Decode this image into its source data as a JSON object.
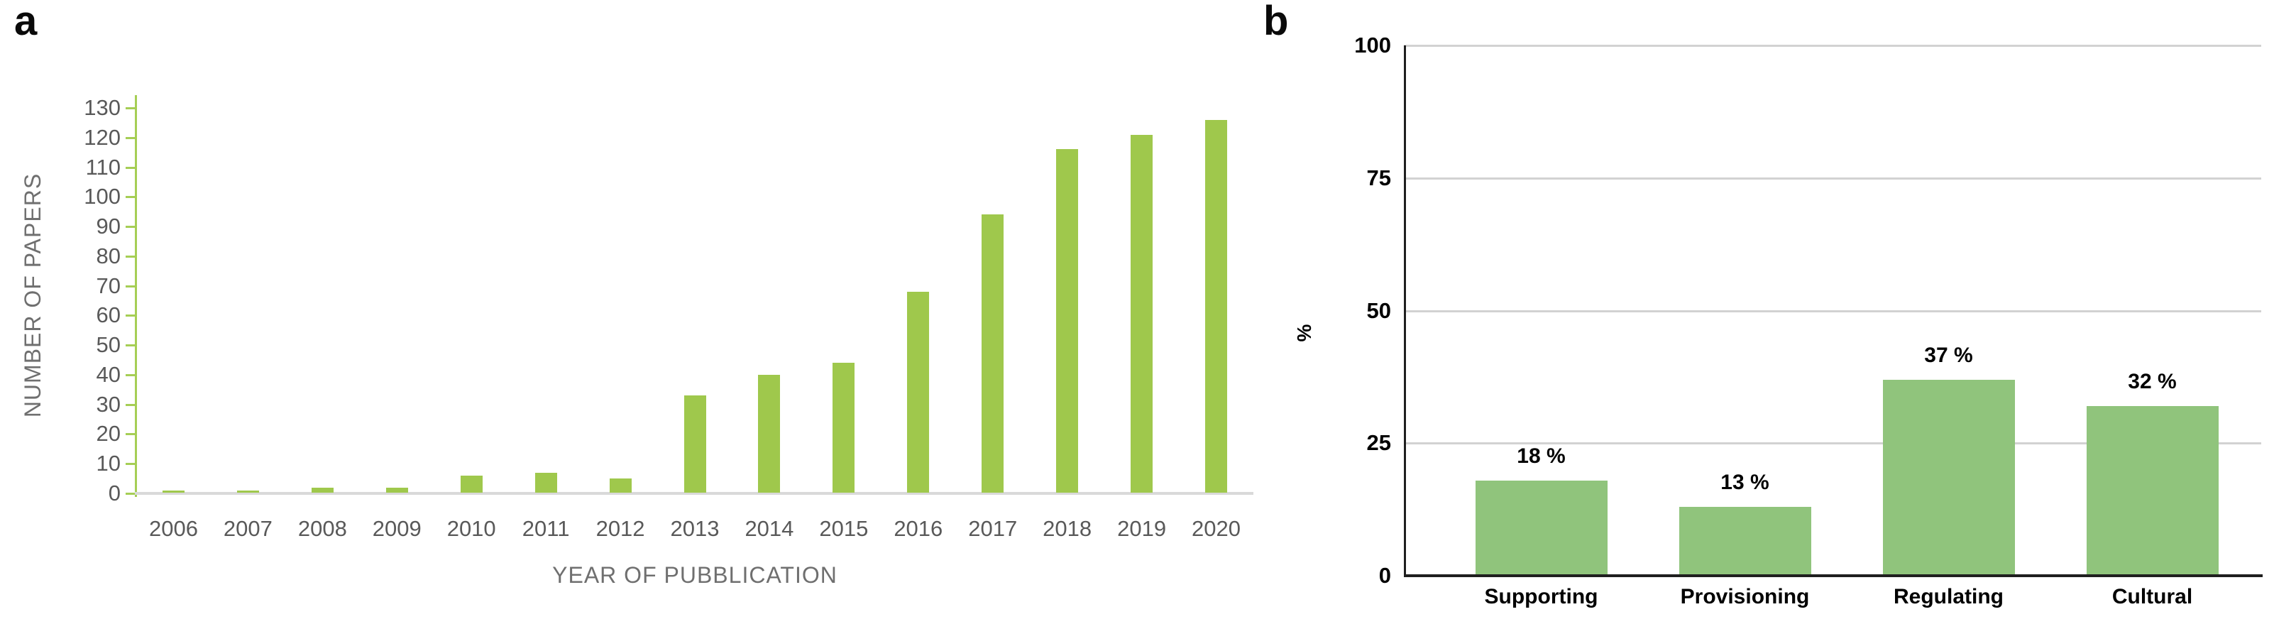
{
  "figure_title": "",
  "chart_data": [
    {
      "type": "bar",
      "panel_label": "a",
      "xlabel": "YEAR OF PUBBLICATION",
      "ylabel": "NUMBER OF PAPERS",
      "categories": [
        "2006",
        "2007",
        "2008",
        "2009",
        "2010",
        "2011",
        "2012",
        "2013",
        "2014",
        "2015",
        "2016",
        "2017",
        "2018",
        "2019",
        "2020"
      ],
      "values": [
        1,
        1,
        2,
        2,
        6,
        7,
        5,
        33,
        40,
        44,
        68,
        94,
        116,
        121,
        126
      ],
      "ylim": [
        0,
        130
      ],
      "y_ticks": [
        0,
        10,
        20,
        30,
        40,
        50,
        60,
        70,
        80,
        90,
        100,
        110,
        120,
        130
      ],
      "grid": false,
      "legend": "none",
      "bar_color": "#9fc84c",
      "axis_color": "#a6ce55",
      "baseline_color": "#d9d9d9",
      "tick_label_color": "#595959",
      "axis_title_color": "#6f6f6f"
    },
    {
      "type": "bar",
      "panel_label": "b",
      "xlabel": "",
      "ylabel": "%",
      "categories": [
        "Supporting",
        "Provisioning",
        "Regulating",
        "Cultural"
      ],
      "values": [
        18,
        13,
        37,
        32
      ],
      "data_labels": [
        "18 %",
        "13 %",
        "37 %",
        "32 %"
      ],
      "ylim": [
        0,
        100
      ],
      "y_ticks": [
        0,
        25,
        50,
        75,
        100
      ],
      "grid": true,
      "legend": "none",
      "bar_color": "#90c47c",
      "gridline_color": "#d2d2d2",
      "axis_color": "#1f1f1f",
      "label_color": "#000000"
    }
  ]
}
